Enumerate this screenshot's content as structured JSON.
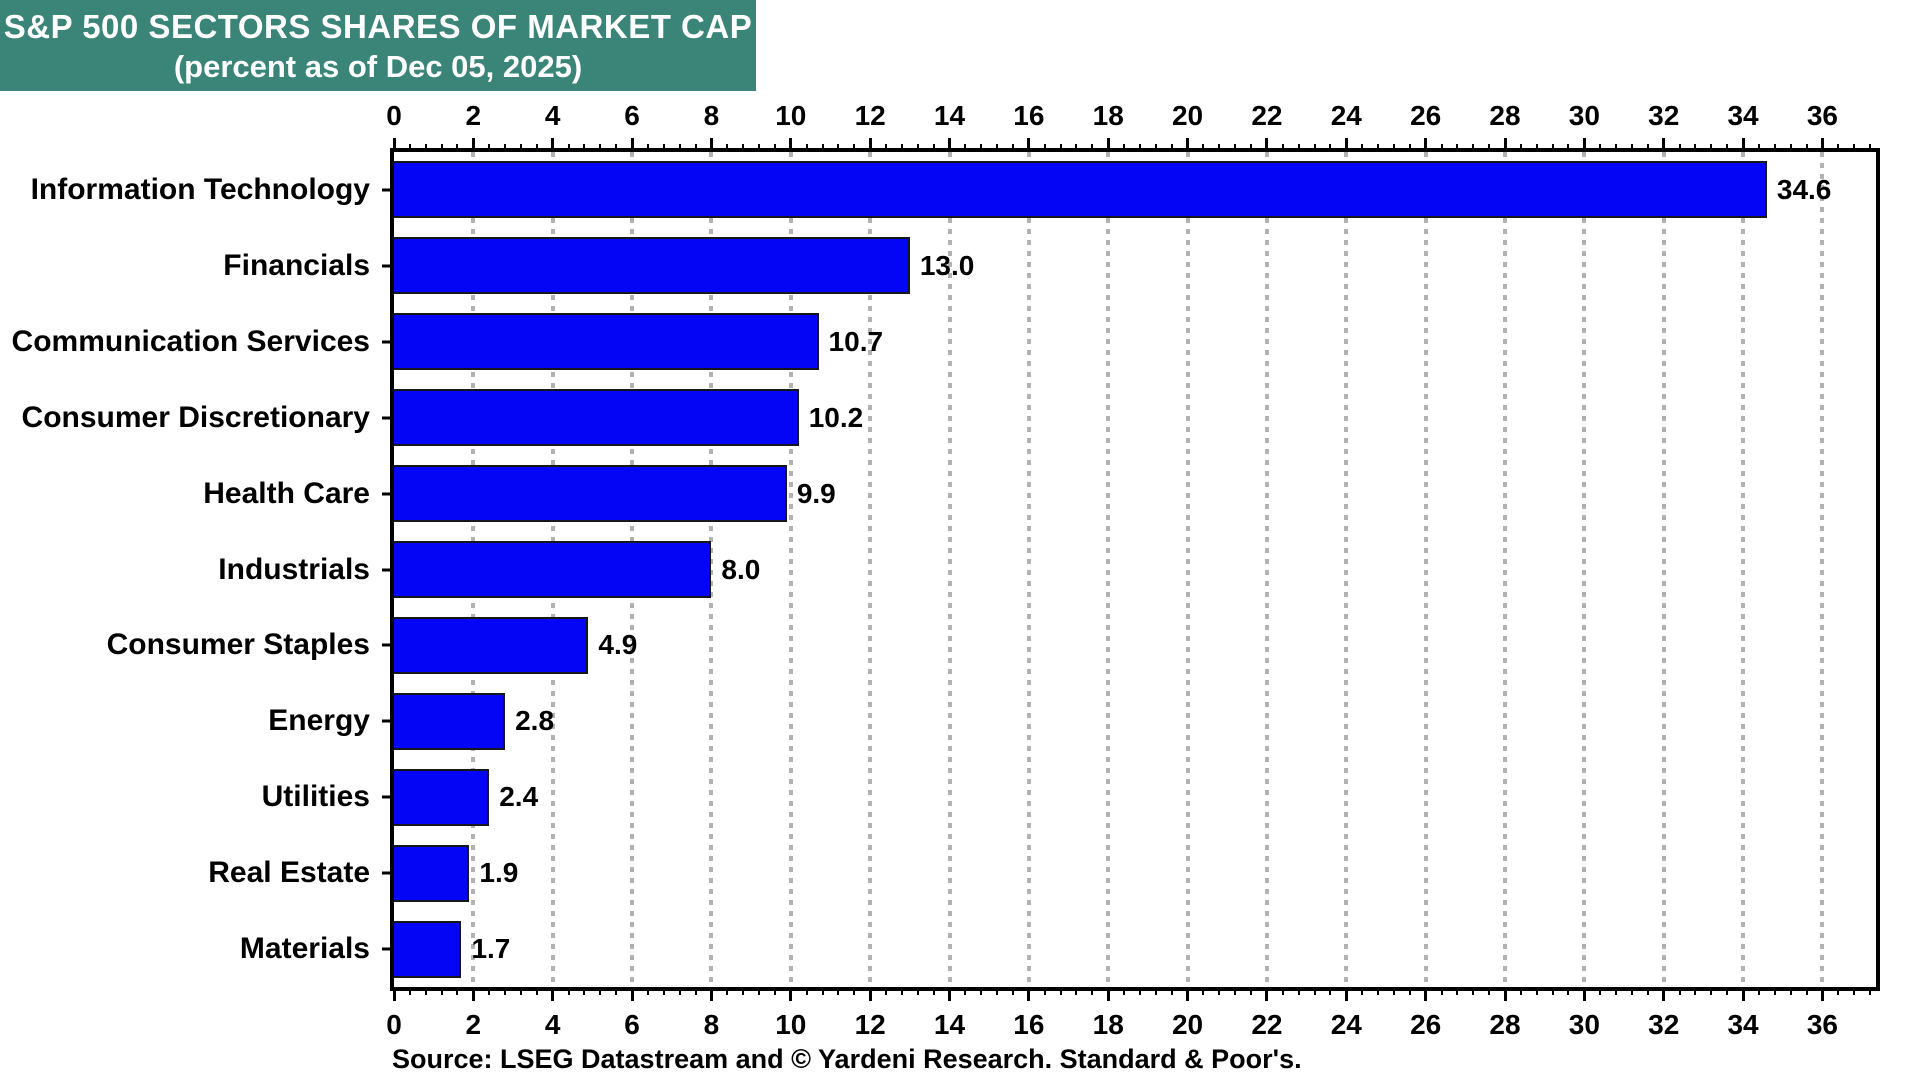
{
  "title": {
    "line1": "S&P 500 SECTORS SHARES OF MARKET CAP",
    "line2": "(percent as of Dec 05, 2025)",
    "bg_color": "#3A8578",
    "text_color": "#FFFFFF"
  },
  "source": "Source: LSEG Datastream and © Yardeni Research. Standard & Poor's.",
  "chart_data": {
    "type": "bar",
    "orientation": "horizontal",
    "title": "S&P 500 SECTORS SHARES OF MARKET CAP (percent as of Dec 05, 2025)",
    "xlabel": "",
    "ylabel": "",
    "categories": [
      "Information Technology",
      "Financials",
      "Communication Services",
      "Consumer Discretionary",
      "Health Care",
      "Industrials",
      "Consumer Staples",
      "Energy",
      "Utilities",
      "Real Estate",
      "Materials"
    ],
    "values": [
      34.6,
      13.0,
      10.7,
      10.2,
      9.9,
      8.0,
      4.9,
      2.8,
      2.4,
      1.9,
      1.7
    ],
    "value_labels": [
      "34.6",
      "13.0",
      "10.7",
      "10.2",
      "9.9",
      "8.0",
      "4.9",
      "2.8",
      "2.4",
      "1.9",
      "1.7"
    ],
    "xlim": [
      0,
      37.35
    ],
    "x_ticks": [
      0,
      2,
      4,
      6,
      8,
      10,
      12,
      14,
      16,
      18,
      20,
      22,
      24,
      26,
      28,
      30,
      32,
      34,
      36
    ],
    "minor_tick_step": 0.4,
    "grid": "vertical dotted gridlines at major ticks",
    "legend": "none",
    "bar_color": "#0505F5",
    "bar_border_color": "#16161D",
    "gridline_color": "#B2B2B2",
    "axis_color": "#000000"
  }
}
